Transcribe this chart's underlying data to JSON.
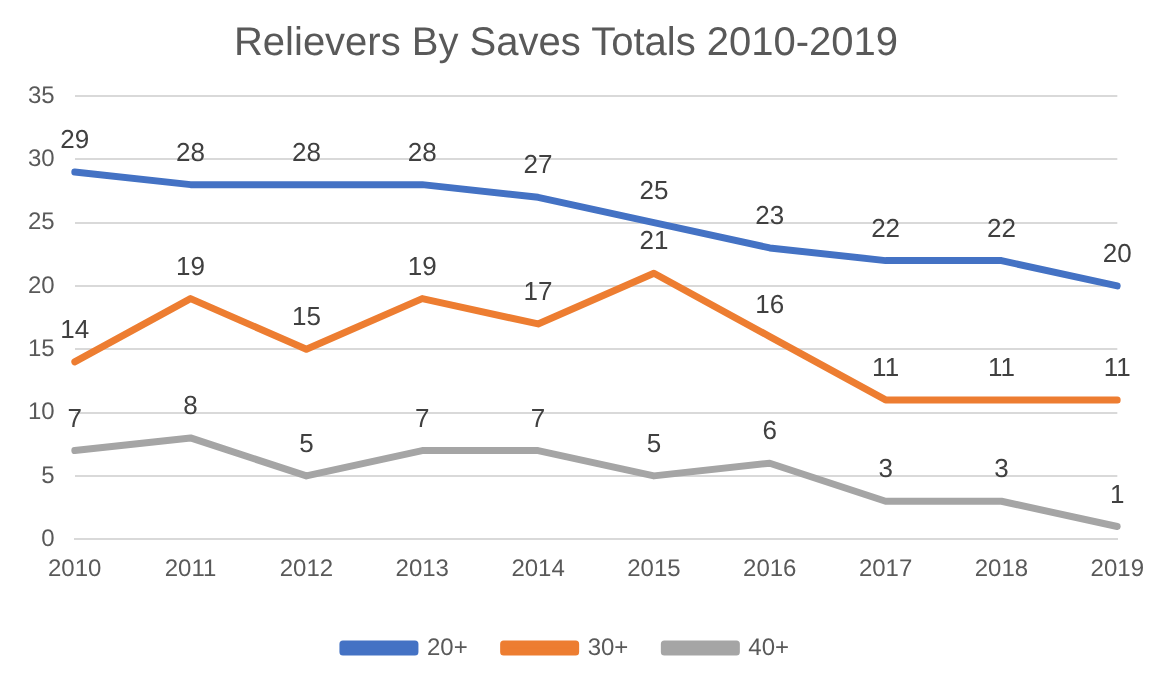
{
  "chart_data": {
    "type": "line",
    "title": "Relievers By Saves Totals 2010-2019",
    "categories": [
      "2010",
      "2011",
      "2012",
      "2013",
      "2014",
      "2015",
      "2016",
      "2017",
      "2018",
      "2019"
    ],
    "series": [
      {
        "name": "20+",
        "color": "#4472c4",
        "values": [
          29,
          28,
          28,
          28,
          27,
          25,
          23,
          22,
          22,
          20
        ]
      },
      {
        "name": "30+",
        "color": "#ed7d31",
        "values": [
          14,
          19,
          15,
          19,
          17,
          21,
          16,
          11,
          11,
          11
        ]
      },
      {
        "name": "40+",
        "color": "#a5a5a5",
        "values": [
          7,
          8,
          5,
          7,
          7,
          5,
          6,
          3,
          3,
          1
        ]
      }
    ],
    "ylim": [
      0,
      35
    ],
    "yticks": [
      0,
      5,
      10,
      15,
      20,
      25,
      30,
      35
    ],
    "grid": "y",
    "legend": "bottom",
    "marker": "none",
    "line_style": "solid",
    "data_labels": true
  }
}
